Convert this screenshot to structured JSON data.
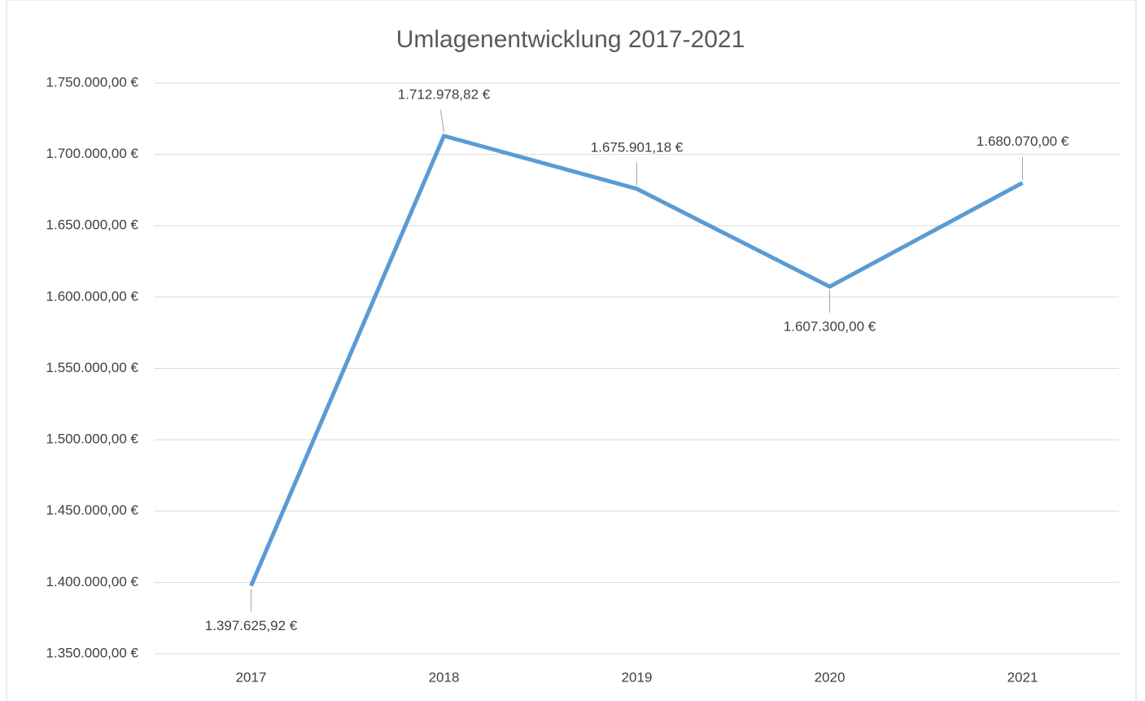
{
  "chart_data": {
    "type": "line",
    "title": "Umlagenentwicklung 2017-2021",
    "categories": [
      "2017",
      "2018",
      "2019",
      "2020",
      "2021"
    ],
    "series": [
      {
        "name": "Umlagen",
        "color": "#5b9bd5",
        "values": [
          1397625.92,
          1712978.82,
          1675901.18,
          1607300.0,
          1680070.0
        ],
        "value_labels": [
          "1.397.625,92 €",
          "1.712.978,82 €",
          "1.675.901,18 €",
          "1.607.300,00 €",
          "1.680.070,00 €"
        ]
      }
    ],
    "ylim": [
      1350000,
      1750000
    ],
    "yticks": [
      {
        "value": 1350000,
        "label": "1.350.000,00 €"
      },
      {
        "value": 1400000,
        "label": "1.400.000,00 €"
      },
      {
        "value": 1450000,
        "label": "1.450.000,00 €"
      },
      {
        "value": 1500000,
        "label": "1.500.000,00 €"
      },
      {
        "value": 1550000,
        "label": "1.550.000,00 €"
      },
      {
        "value": 1600000,
        "label": "1.600.000,00 €"
      },
      {
        "value": 1650000,
        "label": "1.650.000,00 €"
      },
      {
        "value": 1700000,
        "label": "1.700.000,00 €"
      },
      {
        "value": 1750000,
        "label": "1.750.000,00 €"
      }
    ],
    "grid": true
  }
}
